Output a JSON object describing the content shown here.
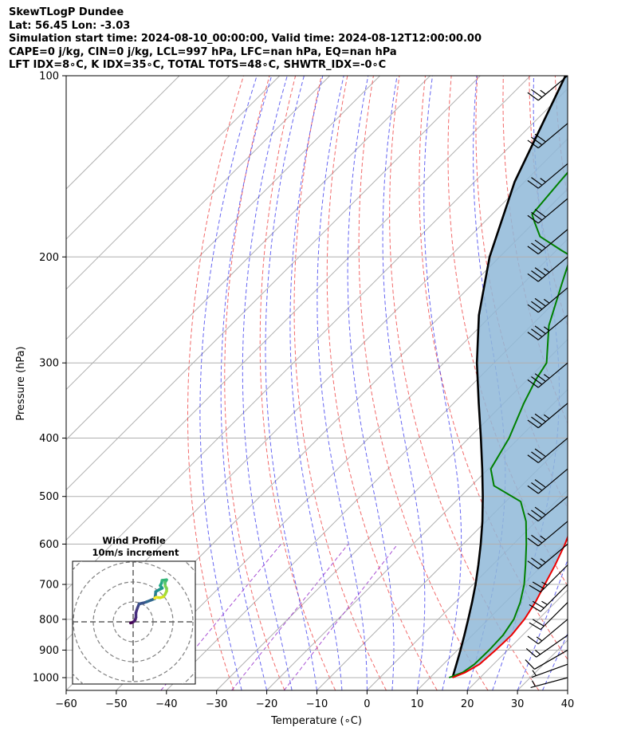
{
  "header": {
    "line1": "SkewTLogP Dundee",
    "line2": "Lat: 56.45   Lon: -3.03",
    "line3": "Simulation start time: 2024-08-10_00:00:00, Valid time: 2024-08-12T12:00:00.00",
    "line4": "CAPE=0 j/kg, CIN=0 j/kg, LCL=997 hPa, LFC=nan hPa, EQ=nan hPa",
    "line5": "LFT IDX=8∘C, K IDX=35∘C, TOTAL TOTS=48∘C, SHWTR_IDX=-0∘C"
  },
  "chart_data": {
    "type": "skewt-logp",
    "xlabel": "Temperature (∘C)",
    "ylabel": "Pressure (hPa)",
    "xlim": [
      -60,
      40
    ],
    "ylim": [
      1050,
      100
    ],
    "x_ticks": [
      -60,
      -50,
      -40,
      -30,
      -20,
      -10,
      0,
      10,
      20,
      30,
      40
    ],
    "x_tick_labels": [
      "−60",
      "−50",
      "−40",
      "−30",
      "−20",
      "−10",
      "0",
      "10",
      "20",
      "30",
      "40"
    ],
    "y_ticks": [
      1000,
      900,
      800,
      700,
      600,
      500,
      400,
      300,
      200,
      100
    ],
    "y_tick_labels": [
      "1000",
      "900",
      "800",
      "700",
      "600",
      "500",
      "400",
      "300",
      "200",
      "100"
    ],
    "series": [
      {
        "name": "temperature",
        "color": "#ee0000",
        "points": [
          [
            1000,
            14.5
          ],
          [
            980,
            16.0
          ],
          [
            950,
            17.2
          ],
          [
            900,
            17.6
          ],
          [
            850,
            17.8
          ],
          [
            800,
            17.2
          ],
          [
            750,
            16.0
          ],
          [
            700,
            14.3
          ],
          [
            650,
            12.5
          ],
          [
            600,
            10.3
          ],
          [
            550,
            7.5
          ],
          [
            500,
            4.2
          ],
          [
            450,
            0.5
          ],
          [
            400,
            -3.3
          ],
          [
            350,
            -7.7
          ],
          [
            300,
            -12.4
          ],
          [
            250,
            -17.8
          ],
          [
            225,
            -21.7
          ],
          [
            200,
            -25.4
          ],
          [
            190,
            -26.2
          ],
          [
            180,
            -26.5
          ],
          [
            170,
            -26.7
          ],
          [
            160,
            -26.4
          ],
          [
            150,
            -26.1
          ],
          [
            140,
            -25.6
          ],
          [
            130,
            -24.9
          ],
          [
            120,
            -24.6
          ],
          [
            110,
            -24.4
          ],
          [
            100,
            -24.9
          ]
        ]
      },
      {
        "name": "dewpoint",
        "color": "#008000",
        "points": [
          [
            1000,
            13.8
          ],
          [
            980,
            15.5
          ],
          [
            950,
            16.2
          ],
          [
            900,
            16.3
          ],
          [
            850,
            16.1
          ],
          [
            800,
            15.1
          ],
          [
            750,
            13.0
          ],
          [
            700,
            10.2
          ],
          [
            650,
            6.6
          ],
          [
            600,
            2.6
          ],
          [
            550,
            -2.0
          ],
          [
            510,
            -7.0
          ],
          [
            480,
            -15.5
          ],
          [
            450,
            -19.5
          ],
          [
            400,
            -22.0
          ],
          [
            350,
            -26.0
          ],
          [
            320,
            -28.3
          ],
          [
            300,
            -29.5
          ],
          [
            260,
            -36.5
          ],
          [
            220,
            -42.5
          ],
          [
            205,
            -45.0
          ],
          [
            200,
            -45.5
          ],
          [
            195,
            -49.0
          ],
          [
            185,
            -56.0
          ],
          [
            175,
            -60.0
          ],
          [
            170,
            -62.0
          ],
          [
            150,
            -63.0
          ],
          [
            130,
            -64.0
          ],
          [
            110,
            -65.0
          ],
          [
            100,
            -66.0
          ]
        ]
      },
      {
        "name": "parcel_profile",
        "color": "#000000",
        "points": [
          [
            1000,
            14.5
          ],
          [
            950,
            12.6
          ],
          [
            900,
            10.6
          ],
          [
            850,
            8.4
          ],
          [
            800,
            6.0
          ],
          [
            750,
            3.4
          ],
          [
            700,
            0.5
          ],
          [
            650,
            -2.8
          ],
          [
            600,
            -6.5
          ],
          [
            550,
            -10.7
          ],
          [
            500,
            -15.6
          ],
          [
            450,
            -21.2
          ],
          [
            400,
            -27.6
          ],
          [
            350,
            -35.0
          ],
          [
            300,
            -43.4
          ],
          [
            250,
            -52.5
          ],
          [
            200,
            -62.0
          ],
          [
            150,
            -72.0
          ],
          [
            100,
            -83.0
          ]
        ]
      }
    ],
    "shaded_region": {
      "name": "CIN area between temperature and parcel",
      "color": "#8fb8d8"
    },
    "wind_barbs": [
      {
        "p": 1000,
        "dir": 255,
        "speed": 7
      },
      {
        "p": 950,
        "dir": 250,
        "speed": 7
      },
      {
        "p": 900,
        "dir": 240,
        "speed": 12
      },
      {
        "p": 850,
        "dir": 235,
        "speed": 15
      },
      {
        "p": 800,
        "dir": 230,
        "speed": 17
      },
      {
        "p": 750,
        "dir": 225,
        "speed": 22
      },
      {
        "p": 700,
        "dir": 225,
        "speed": 25
      },
      {
        "p": 650,
        "dir": 225,
        "speed": 25
      },
      {
        "p": 600,
        "dir": 230,
        "speed": 25
      },
      {
        "p": 550,
        "dir": 230,
        "speed": 25
      },
      {
        "p": 500,
        "dir": 230,
        "speed": 30
      },
      {
        "p": 450,
        "dir": 230,
        "speed": 30
      },
      {
        "p": 400,
        "dir": 230,
        "speed": 30
      },
      {
        "p": 350,
        "dir": 230,
        "speed": 35
      },
      {
        "p": 300,
        "dir": 230,
        "speed": 35
      },
      {
        "p": 250,
        "dir": 230,
        "speed": 35
      },
      {
        "p": 225,
        "dir": 230,
        "speed": 35
      },
      {
        "p": 200,
        "dir": 230,
        "speed": 35
      },
      {
        "p": 180,
        "dir": 230,
        "speed": 30
      },
      {
        "p": 160,
        "dir": 230,
        "speed": 30
      },
      {
        "p": 140,
        "dir": 230,
        "speed": 25
      },
      {
        "p": 120,
        "dir": 230,
        "speed": 30
      },
      {
        "p": 100,
        "dir": 230,
        "speed": 25
      }
    ],
    "hodograph": {
      "title": "Wind Profile",
      "subtitle": "10m/s increment",
      "ring_increment_ms": 10,
      "points": [
        [
          -1.3,
          -0.6
        ],
        [
          -0.5,
          -0.3
        ],
        [
          0.4,
          0.2
        ],
        [
          1.0,
          0.9
        ],
        [
          1.4,
          2.2
        ],
        [
          1.4,
          4.6
        ],
        [
          2.1,
          6.8
        ],
        [
          3.0,
          9.0
        ],
        [
          5.2,
          9.5
        ],
        [
          6.7,
          10.0
        ],
        [
          9.0,
          10.9
        ],
        [
          10.8,
          11.6
        ],
        [
          11.2,
          13.4
        ],
        [
          11.3,
          15.1
        ],
        [
          13.0,
          16.1
        ],
        [
          14.6,
          16.9
        ],
        [
          13.6,
          18.2
        ],
        [
          14.3,
          19.5
        ],
        [
          14.5,
          20.8
        ],
        [
          16.8,
          21.1
        ],
        [
          16.0,
          19.7
        ],
        [
          16.1,
          18.0
        ],
        [
          16.8,
          16.8
        ],
        [
          16.8,
          15.4
        ],
        [
          16.0,
          13.7
        ],
        [
          15.2,
          12.6
        ],
        [
          13.6,
          12.1
        ],
        [
          11.5,
          12.3
        ],
        [
          10.8,
          11.9
        ]
      ],
      "colors": [
        "#440154",
        "#481a6c",
        "#472f7d",
        "#414487",
        "#3a548c",
        "#31688e",
        "#2a788e",
        "#23888e",
        "#1f988b",
        "#22a884",
        "#35b779",
        "#54c568",
        "#7ad151",
        "#a5db36",
        "#d2e21b",
        "#fde725"
      ]
    }
  }
}
